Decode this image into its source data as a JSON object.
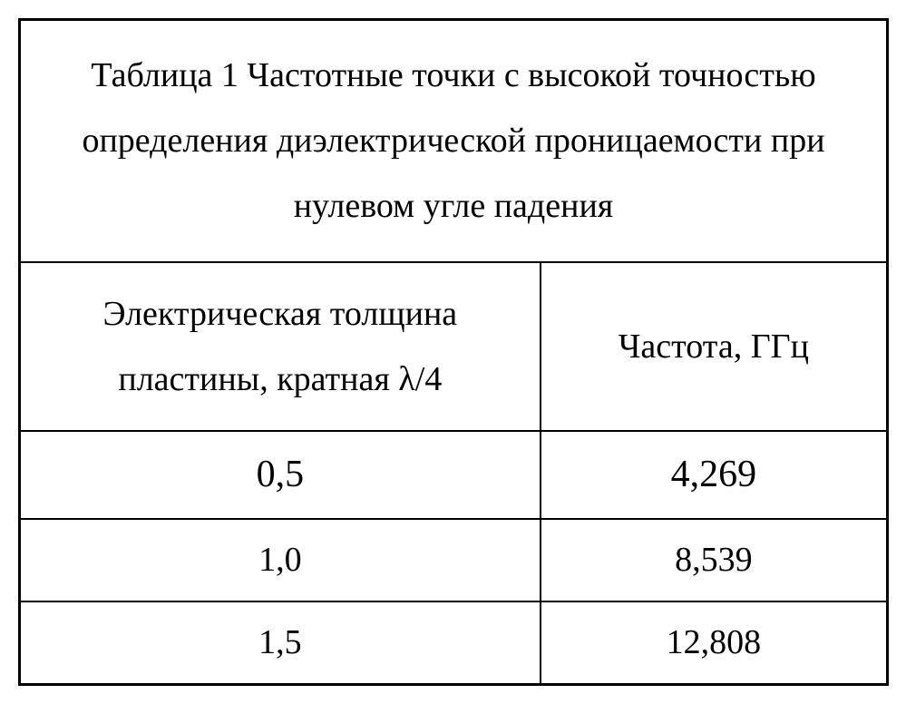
{
  "table": {
    "title": "Таблица 1 Частотные точки с высокой точностью определения диэлектрической проницаемости при нулевом угле падения",
    "columns": [
      "Электрическая толщина пластины, кратная λ/4",
      "Частота, ГГц"
    ],
    "rows": [
      [
        "0,5",
        "4,269"
      ],
      [
        "1,0",
        "8,539"
      ],
      [
        "1,5",
        "12,808"
      ]
    ],
    "border_color": "#000000",
    "text_color": "#000000",
    "background_color": "#ffffff",
    "font_family": "Times New Roman",
    "title_fontsize": 38,
    "header_fontsize": 38,
    "cell_fontsize": 38,
    "first_row_fontsize": 42,
    "col_widths_pct": [
      60,
      40
    ],
    "border_width_outer": 3,
    "border_width_inner": 2
  }
}
